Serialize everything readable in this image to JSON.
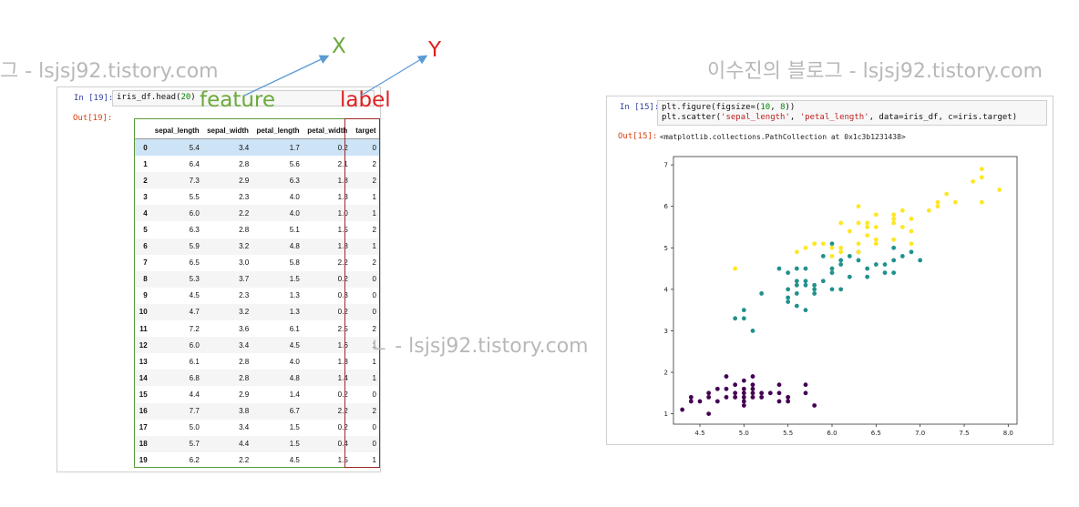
{
  "watermark": {
    "text_a": "그 - lsjsj92.tistory.com",
    "text_b": "이수진의 블로그 - lsjsj92.tistory.com",
    "text_c": "ㄴ - lsjsj92.tistory.com"
  },
  "left_cell": {
    "in_prompt": "In [19]:",
    "code_prefix": "iris_df.head(",
    "code_arg": "20",
    "code_suffix": ")",
    "out_prompt": "Out[19]:"
  },
  "dataframe": {
    "columns": [
      "sepal_length",
      "sepal_width",
      "petal_length",
      "petal_width",
      "target"
    ],
    "rows": [
      {
        "idx": "0",
        "v": [
          "5.4",
          "3.4",
          "1.7",
          "0.2",
          "0"
        ]
      },
      {
        "idx": "1",
        "v": [
          "6.4",
          "2.8",
          "5.6",
          "2.1",
          "2"
        ]
      },
      {
        "idx": "2",
        "v": [
          "7.3",
          "2.9",
          "6.3",
          "1.8",
          "2"
        ]
      },
      {
        "idx": "3",
        "v": [
          "5.5",
          "2.3",
          "4.0",
          "1.3",
          "1"
        ]
      },
      {
        "idx": "4",
        "v": [
          "6.0",
          "2.2",
          "4.0",
          "1.0",
          "1"
        ]
      },
      {
        "idx": "5",
        "v": [
          "6.3",
          "2.8",
          "5.1",
          "1.5",
          "2"
        ]
      },
      {
        "idx": "6",
        "v": [
          "5.9",
          "3.2",
          "4.8",
          "1.8",
          "1"
        ]
      },
      {
        "idx": "7",
        "v": [
          "6.5",
          "3.0",
          "5.8",
          "2.2",
          "2"
        ]
      },
      {
        "idx": "8",
        "v": [
          "5.3",
          "3.7",
          "1.5",
          "0.2",
          "0"
        ]
      },
      {
        "idx": "9",
        "v": [
          "4.5",
          "2.3",
          "1.3",
          "0.3",
          "0"
        ]
      },
      {
        "idx": "10",
        "v": [
          "4.7",
          "3.2",
          "1.3",
          "0.2",
          "0"
        ]
      },
      {
        "idx": "11",
        "v": [
          "7.2",
          "3.6",
          "6.1",
          "2.5",
          "2"
        ]
      },
      {
        "idx": "12",
        "v": [
          "6.0",
          "3.4",
          "4.5",
          "1.6",
          "1"
        ]
      },
      {
        "idx": "13",
        "v": [
          "6.1",
          "2.8",
          "4.0",
          "1.3",
          "1"
        ]
      },
      {
        "idx": "14",
        "v": [
          "6.8",
          "2.8",
          "4.8",
          "1.4",
          "1"
        ]
      },
      {
        "idx": "15",
        "v": [
          "4.4",
          "2.9",
          "1.4",
          "0.2",
          "0"
        ]
      },
      {
        "idx": "16",
        "v": [
          "7.7",
          "3.8",
          "6.7",
          "2.2",
          "2"
        ]
      },
      {
        "idx": "17",
        "v": [
          "5.0",
          "3.4",
          "1.5",
          "0.2",
          "0"
        ]
      },
      {
        "idx": "18",
        "v": [
          "5.7",
          "4.4",
          "1.5",
          "0.4",
          "0"
        ]
      },
      {
        "idx": "19",
        "v": [
          "6.2",
          "2.2",
          "4.5",
          "1.5",
          "1"
        ]
      }
    ]
  },
  "annotations": {
    "feature": "feature",
    "label": "label",
    "x_letter": "X",
    "y_letter": "Y",
    "colors": {
      "feature": "#6aaa3a",
      "label": "#e02020",
      "arrow": "#5b9bd5",
      "feature_box": "#5a9a3a",
      "label_box": "#a02a2a"
    }
  },
  "right_cell": {
    "in_prompt": "In [15]:",
    "line1_prefix": "plt.figure(figsize=(",
    "line1_a": "10",
    "line1_sep": ", ",
    "line1_b": "8",
    "line1_suffix": "))",
    "line2_prefix": "plt.scatter(",
    "line2_s1": "'sepal_length'",
    "line2_sep": ", ",
    "line2_s2": "'petal_length'",
    "line2_suffix": ", data=iris_df, c=iris.target)",
    "out_prompt": "Out[15]:",
    "out_text": "<matplotlib.collections.PathCollection at 0x1c3b1231438>"
  },
  "chart_data": {
    "type": "scatter",
    "xlim": [
      4.2,
      8.1
    ],
    "ylim": [
      0.75,
      7.2
    ],
    "xticks": [
      "4.5",
      "5.0",
      "5.5",
      "6.0",
      "6.5",
      "7.0",
      "7.5",
      "8.0"
    ],
    "yticks": [
      "1",
      "2",
      "3",
      "4",
      "5",
      "6",
      "7"
    ],
    "grid": false,
    "series": [
      {
        "color": "#440154",
        "points": [
          [
            4.3,
            1.1
          ],
          [
            4.4,
            1.4
          ],
          [
            4.4,
            1.3
          ],
          [
            4.5,
            1.3
          ],
          [
            4.6,
            1.4
          ],
          [
            4.6,
            1.0
          ],
          [
            4.6,
            1.5
          ],
          [
            4.7,
            1.3
          ],
          [
            4.7,
            1.6
          ],
          [
            4.8,
            1.4
          ],
          [
            4.8,
            1.6
          ],
          [
            4.8,
            1.9
          ],
          [
            4.9,
            1.4
          ],
          [
            4.9,
            1.5
          ],
          [
            5.0,
            1.4
          ],
          [
            5.0,
            1.6
          ],
          [
            5.0,
            1.2
          ],
          [
            5.0,
            1.3
          ],
          [
            5.0,
            1.5
          ],
          [
            5.1,
            1.4
          ],
          [
            5.1,
            1.5
          ],
          [
            5.1,
            1.7
          ],
          [
            5.1,
            1.9
          ],
          [
            5.1,
            1.6
          ],
          [
            5.2,
            1.5
          ],
          [
            5.2,
            1.4
          ],
          [
            5.3,
            1.5
          ],
          [
            5.4,
            1.7
          ],
          [
            5.4,
            1.5
          ],
          [
            5.4,
            1.3
          ],
          [
            5.5,
            1.4
          ],
          [
            5.5,
            1.3
          ],
          [
            5.7,
            1.5
          ],
          [
            5.7,
            1.7
          ],
          [
            5.8,
            1.2
          ],
          [
            4.9,
            1.7
          ],
          [
            5.0,
            1.8
          ]
        ]
      },
      {
        "color": "#21918c",
        "points": [
          [
            4.9,
            3.3
          ],
          [
            5.0,
            3.5
          ],
          [
            5.0,
            3.3
          ],
          [
            5.1,
            3.0
          ],
          [
            5.2,
            3.9
          ],
          [
            5.4,
            4.5
          ],
          [
            5.5,
            4.0
          ],
          [
            5.5,
            3.7
          ],
          [
            5.5,
            3.8
          ],
          [
            5.5,
            4.4
          ],
          [
            5.6,
            3.6
          ],
          [
            5.6,
            3.9
          ],
          [
            5.6,
            4.2
          ],
          [
            5.6,
            4.5
          ],
          [
            5.6,
            4.1
          ],
          [
            5.7,
            4.2
          ],
          [
            5.7,
            3.5
          ],
          [
            5.7,
            4.5
          ],
          [
            5.7,
            4.1
          ],
          [
            5.8,
            4.0
          ],
          [
            5.8,
            3.9
          ],
          [
            5.8,
            4.1
          ],
          [
            5.9,
            4.8
          ],
          [
            5.9,
            4.2
          ],
          [
            6.0,
            4.0
          ],
          [
            6.0,
            4.5
          ],
          [
            6.0,
            5.1
          ],
          [
            6.0,
            4.4
          ],
          [
            6.1,
            4.0
          ],
          [
            6.1,
            4.7
          ],
          [
            6.1,
            4.6
          ],
          [
            6.2,
            4.3
          ],
          [
            6.2,
            4.8
          ],
          [
            6.3,
            4.7
          ],
          [
            6.3,
            4.9
          ],
          [
            6.4,
            4.5
          ],
          [
            6.4,
            4.3
          ],
          [
            6.5,
            4.6
          ],
          [
            6.6,
            4.4
          ],
          [
            6.6,
            4.6
          ],
          [
            6.7,
            4.4
          ],
          [
            6.7,
            4.7
          ],
          [
            6.7,
            5.0
          ],
          [
            6.8,
            4.8
          ],
          [
            6.9,
            4.9
          ],
          [
            7.0,
            4.7
          ]
        ]
      },
      {
        "color": "#fde725",
        "points": [
          [
            4.9,
            4.5
          ],
          [
            5.6,
            4.9
          ],
          [
            5.7,
            5.0
          ],
          [
            5.8,
            5.1
          ],
          [
            5.8,
            5.1
          ],
          [
            5.9,
            5.1
          ],
          [
            6.0,
            5.0
          ],
          [
            6.0,
            4.8
          ],
          [
            6.1,
            5.6
          ],
          [
            6.1,
            4.9
          ],
          [
            6.2,
            5.4
          ],
          [
            6.3,
            6.0
          ],
          [
            6.3,
            5.6
          ],
          [
            6.3,
            5.1
          ],
          [
            6.3,
            4.9
          ],
          [
            6.4,
            5.3
          ],
          [
            6.4,
            5.6
          ],
          [
            6.4,
            5.5
          ],
          [
            6.5,
            5.8
          ],
          [
            6.5,
            5.2
          ],
          [
            6.5,
            5.5
          ],
          [
            6.7,
            5.8
          ],
          [
            6.7,
            5.6
          ],
          [
            6.7,
            5.7
          ],
          [
            6.7,
            5.2
          ],
          [
            6.8,
            5.5
          ],
          [
            6.8,
            5.9
          ],
          [
            6.9,
            5.1
          ],
          [
            6.9,
            5.4
          ],
          [
            6.9,
            5.7
          ],
          [
            7.1,
            5.9
          ],
          [
            7.2,
            6.0
          ],
          [
            7.2,
            6.1
          ],
          [
            7.3,
            6.3
          ],
          [
            7.4,
            6.1
          ],
          [
            7.6,
            6.6
          ],
          [
            7.7,
            6.7
          ],
          [
            7.7,
            6.9
          ],
          [
            7.7,
            6.1
          ],
          [
            7.9,
            6.4
          ],
          [
            6.1,
            5.0
          ],
          [
            6.5,
            5.1
          ]
        ]
      }
    ]
  }
}
